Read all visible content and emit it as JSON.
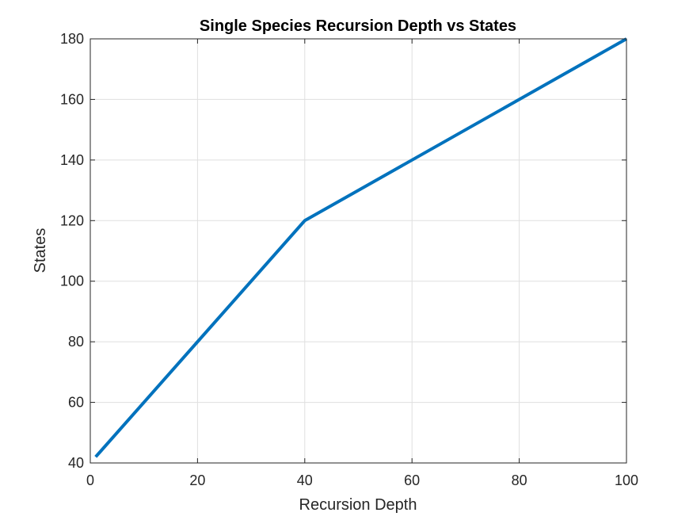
{
  "chart_data": {
    "type": "line",
    "title": "Single Species Recursion Depth vs States",
    "xlabel": "Recursion Depth",
    "ylabel": "States",
    "xlim": [
      0,
      100
    ],
    "ylim": [
      40,
      180
    ],
    "xticks": [
      0,
      20,
      40,
      60,
      80,
      100
    ],
    "yticks": [
      40,
      60,
      80,
      100,
      120,
      140,
      160,
      180
    ],
    "grid": true,
    "series": [
      {
        "color": "#0072bd",
        "x": [
          1,
          40,
          100
        ],
        "y": [
          42,
          120,
          180
        ]
      }
    ]
  }
}
